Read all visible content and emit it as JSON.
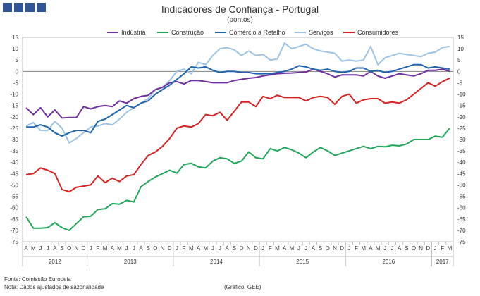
{
  "title": "Indicadores de Confiança - Portugal",
  "subtitle": "(pontos)",
  "footer": {
    "source": "Fonte: Comissão Europeia",
    "note": "Nota: Dados ajustados de sazonalidade",
    "graphic": "(Gráfico: GEE)"
  },
  "chart_data": {
    "type": "line",
    "ylim": [
      -75,
      15
    ],
    "yticks": [
      15,
      10,
      5,
      0,
      -5,
      -10,
      -15,
      -20,
      -25,
      -30,
      -35,
      -40,
      -45,
      -50,
      -55,
      -60,
      -65,
      -70,
      -75
    ],
    "month_labels": [
      "A",
      "M",
      "J",
      "J",
      "A",
      "S",
      "O",
      "N",
      "D",
      "J",
      "F",
      "M",
      "A",
      "M",
      "J",
      "J",
      "A",
      "S",
      "O",
      "N",
      "D",
      "J",
      "F",
      "M",
      "A",
      "M",
      "J",
      "J",
      "A",
      "S",
      "O",
      "N",
      "D",
      "J",
      "F",
      "M",
      "A",
      "M",
      "J",
      "J",
      "A",
      "S",
      "O",
      "N",
      "D",
      "J",
      "F",
      "M",
      "A",
      "M",
      "J",
      "J",
      "A",
      "S",
      "O",
      "N",
      "D",
      "J",
      "F",
      "M"
    ],
    "years": [
      {
        "label": "2012",
        "start": 0,
        "end": 8
      },
      {
        "label": "2013",
        "start": 9,
        "end": 20
      },
      {
        "label": "2014",
        "start": 21,
        "end": 32
      },
      {
        "label": "2015",
        "start": 33,
        "end": 44
      },
      {
        "label": "2016",
        "start": 45,
        "end": 56
      },
      {
        "label": "2017",
        "start": 57,
        "end": 59
      }
    ],
    "grid": false,
    "legend_position": "top",
    "series": [
      {
        "name": "Indústria",
        "color": "#7030a0",
        "values": [
          -16,
          -19,
          -16,
          -20,
          -17,
          -20.5,
          -20.3,
          -20.3,
          -15.5,
          -16.5,
          -15.5,
          -15,
          -15.5,
          -13,
          -14,
          -12,
          -11,
          -10.5,
          -8,
          -7,
          -5,
          -4.5,
          -5.5,
          -4,
          -4,
          -4.5,
          -5,
          -5,
          -5,
          -4,
          -3.5,
          -3,
          -2.7,
          -2,
          -1.5,
          -1,
          -0.8,
          -0.7,
          -0.5,
          -0.3,
          1,
          0,
          -1,
          -2.5,
          -1.5,
          -1.5,
          -1.5,
          -2,
          0,
          -2,
          -3,
          -2,
          -1,
          -1.5,
          -2,
          -1,
          0.5,
          0.5,
          1,
          0
        ]
      },
      {
        "name": "Construção",
        "color": "#21a65a",
        "values": [
          -64,
          -69,
          -69,
          -68.8,
          -66.6,
          -68.8,
          -70,
          -67,
          -64,
          -63.8,
          -60.8,
          -60.5,
          -58.2,
          -58.5,
          -56.8,
          -57.5,
          -50.8,
          -48.5,
          -46.5,
          -45,
          -43.5,
          -44.8,
          -41,
          -40.5,
          -42,
          -42.5,
          -39.5,
          -38,
          -38.5,
          -40.5,
          -39.5,
          -35.5,
          -38,
          -38.5,
          -34,
          -35,
          -33.5,
          -34.5,
          -36,
          -38,
          -35.5,
          -33.5,
          -35,
          -37,
          -36,
          -35,
          -34,
          -33,
          -34,
          -33,
          -33.2,
          -32.5,
          -32.8,
          -32,
          -30,
          -30,
          -30,
          -28.5,
          -29,
          -25
        ]
      },
      {
        "name": "Comércio a Retalho",
        "color": "#1f64ad",
        "values": [
          -24.5,
          -24.5,
          -23.5,
          -24.5,
          -27,
          -28.5,
          -27,
          -26,
          -26,
          -27,
          -22,
          -21,
          -19,
          -17,
          -15,
          -16,
          -14,
          -13,
          -10,
          -8,
          -6,
          -3.5,
          -1,
          2,
          1.5,
          2,
          0.5,
          -0.5,
          0,
          0,
          -0.5,
          -0.5,
          -1,
          -1,
          -1,
          -0.5,
          0,
          1,
          2.5,
          2,
          1,
          0.5,
          1,
          0,
          -0.5,
          0,
          1.5,
          1.5,
          0,
          0.5,
          -0.5,
          0,
          1,
          2,
          3,
          3,
          1.5,
          2,
          1.5,
          1
        ]
      },
      {
        "name": "Serviços",
        "color": "#9dc3e6",
        "values": [
          -24,
          -22.5,
          -26,
          -26,
          -22,
          -25,
          -31.5,
          -29.5,
          -27,
          -24.5,
          -24,
          -23,
          -23.5,
          -21,
          -18,
          -16,
          -14,
          -12,
          -8,
          -7,
          -4,
          0,
          1,
          -1,
          4,
          3,
          7,
          10,
          10.5,
          9.5,
          7,
          9,
          7,
          7.5,
          5,
          5.5,
          12.5,
          10,
          11,
          12,
          10,
          9,
          8.5,
          8,
          4.5,
          5,
          4.5,
          5,
          11,
          3,
          6,
          7,
          8,
          7.5,
          7,
          6.5,
          8,
          8.5,
          10.5,
          11
        ]
      },
      {
        "name": "Consumidores",
        "color": "#d62222",
        "values": [
          -45.5,
          -45,
          -42.5,
          -43.5,
          -45,
          -52,
          -53,
          -51,
          -50.5,
          -50,
          -46,
          -49,
          -47,
          -48.5,
          -46,
          -45.5,
          -41,
          -37,
          -35.5,
          -33,
          -29.5,
          -25,
          -24,
          -24.5,
          -23,
          -19,
          -19.5,
          -18,
          -21.5,
          -17.5,
          -13.5,
          -13.5,
          -15.5,
          -11,
          -12,
          -10.5,
          -11.5,
          -11.5,
          -11.5,
          -13,
          -11.5,
          -11,
          -11.5,
          -14.5,
          -11,
          -10,
          -14,
          -12.5,
          -12,
          -12,
          -14,
          -13.5,
          -14,
          -12.5,
          -10,
          -7.5,
          -5,
          -6.5,
          -4.5,
          -3
        ]
      }
    ]
  }
}
